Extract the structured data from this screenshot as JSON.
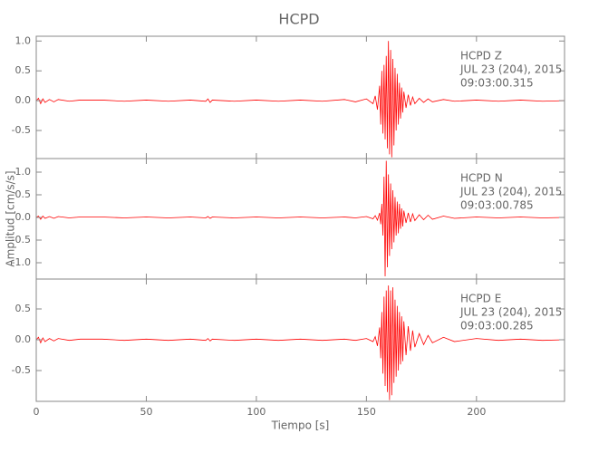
{
  "chart_data": [
    {
      "type": "line",
      "title": "HCPD",
      "annotations": [
        "HCPD   Z",
        "JUL 23 (204), 2015",
        "09:03:00.315"
      ],
      "x": [
        0,
        1,
        2,
        3,
        4,
        6,
        8,
        10,
        15,
        20,
        30,
        40,
        50,
        60,
        70,
        77,
        78,
        79,
        80,
        90,
        100,
        110,
        120,
        130,
        140,
        145,
        150,
        153,
        154,
        155,
        156,
        156.5,
        157,
        157.5,
        158,
        158.5,
        159,
        159.5,
        160,
        160.5,
        161,
        161.5,
        162,
        162.5,
        163,
        163.5,
        164,
        164.5,
        165,
        165.5,
        166,
        166.5,
        167,
        168,
        169,
        170,
        171,
        172,
        174,
        176,
        178,
        180,
        185,
        190,
        200,
        210,
        220,
        230,
        240
      ],
      "series": [
        {
          "color": "#ff0000",
          "values": [
            0,
            0.04,
            -0.05,
            0.03,
            -0.03,
            0.02,
            -0.02,
            0.02,
            -0.01,
            0.01,
            0.01,
            -0.01,
            0.01,
            -0.01,
            0.01,
            -0.01,
            0.03,
            -0.03,
            0.01,
            -0.01,
            0.01,
            -0.01,
            0.01,
            -0.01,
            0.02,
            -0.02,
            0.03,
            -0.05,
            0.08,
            -0.15,
            0.25,
            -0.4,
            0.5,
            -0.55,
            0.6,
            -0.65,
            0.75,
            -0.8,
            1.0,
            -0.9,
            0.85,
            -0.95,
            0.7,
            -0.75,
            0.55,
            -0.5,
            0.45,
            -0.4,
            0.3,
            -0.3,
            0.22,
            -0.2,
            0.15,
            -0.12,
            0.1,
            -0.08,
            0.06,
            -0.05,
            0.04,
            -0.03,
            0.03,
            -0.02,
            0.02,
            -0.01,
            0.01,
            -0.01,
            0.01,
            -0.01,
            0
          ]
        }
      ],
      "xlim": [
        0,
        240
      ],
      "xticks": [
        0,
        50,
        100,
        150,
        200
      ],
      "ylim": [
        -0.97,
        1.08
      ],
      "yticks": [
        -0.5,
        {
          "value": 0,
          "label": "0.0"
        },
        0.5,
        {
          "value": 1,
          "label": "1.0"
        }
      ]
    },
    {
      "type": "line",
      "y_label": "Amplitud [cm/s/s]",
      "annotations": [
        "HCPD   N",
        "JUL 23 (204), 2015",
        "09:03:00.785"
      ],
      "x": [
        0,
        1,
        2,
        3,
        4,
        6,
        8,
        10,
        15,
        20,
        30,
        40,
        50,
        60,
        70,
        77,
        78,
        79,
        80,
        90,
        100,
        110,
        120,
        130,
        140,
        145,
        150,
        153,
        154,
        155,
        156,
        156.5,
        157,
        157.5,
        158,
        158.5,
        159,
        159.5,
        160,
        160.5,
        161,
        161.5,
        162,
        162.5,
        163,
        163.5,
        164,
        164.5,
        165,
        165.5,
        166,
        166.5,
        167,
        168,
        169,
        170,
        171,
        172,
        174,
        176,
        178,
        180,
        185,
        190,
        200,
        210,
        220,
        230,
        240
      ],
      "series": [
        {
          "color": "#ff0000",
          "values": [
            0,
            0.03,
            -0.04,
            0.03,
            -0.02,
            0.02,
            -0.02,
            0.02,
            -0.01,
            0.01,
            0.01,
            -0.01,
            0.01,
            -0.01,
            0.01,
            -0.01,
            0.02,
            -0.02,
            0.01,
            -0.01,
            0.01,
            -0.01,
            0.01,
            -0.01,
            0.01,
            -0.01,
            0.02,
            -0.03,
            0.04,
            -0.06,
            0.1,
            -0.15,
            0.3,
            -0.4,
            0.9,
            -1.3,
            1.25,
            -1.1,
            0.95,
            -0.85,
            0.75,
            -0.7,
            0.6,
            -0.55,
            0.45,
            -0.4,
            0.35,
            -0.35,
            0.3,
            -0.25,
            0.2,
            -0.2,
            0.15,
            -0.12,
            0.1,
            -0.1,
            0.08,
            -0.07,
            0.06,
            -0.05,
            0.05,
            -0.04,
            0.03,
            -0.02,
            0.01,
            -0.01,
            0.01,
            -0.01,
            0
          ]
        }
      ],
      "xlim": [
        0,
        240
      ],
      "xticks": [
        0,
        50,
        100,
        150,
        200
      ],
      "ylim": [
        -1.36,
        1.3
      ],
      "yticks": [
        {
          "value": -1,
          "label": "-1.0"
        },
        -0.5,
        {
          "value": 0,
          "label": "0.0"
        },
        0.5,
        {
          "value": 1,
          "label": "1.0"
        }
      ]
    },
    {
      "type": "line",
      "x_label": "Tiempo [s]",
      "annotations": [
        "HCPD   E",
        "JUL 23 (204), 2015",
        "09:03:00.285"
      ],
      "x": [
        0,
        1,
        2,
        3,
        4,
        6,
        8,
        10,
        15,
        20,
        30,
        40,
        50,
        60,
        70,
        77,
        78,
        79,
        80,
        90,
        100,
        110,
        120,
        130,
        140,
        145,
        150,
        153,
        154,
        155,
        156,
        156.5,
        157,
        157.5,
        158,
        158.5,
        159,
        159.5,
        160,
        160.5,
        161,
        161.5,
        162,
        162.5,
        163,
        163.5,
        164,
        164.5,
        165,
        165.5,
        166,
        166.5,
        167,
        168,
        169,
        170,
        171,
        172,
        174,
        176,
        178,
        180,
        185,
        190,
        200,
        210,
        220,
        230,
        240
      ],
      "series": [
        {
          "color": "#ff0000",
          "values": [
            0,
            0.04,
            -0.05,
            0.03,
            -0.03,
            0.02,
            -0.02,
            0.02,
            -0.01,
            0.01,
            0.01,
            -0.01,
            0.01,
            -0.01,
            0.01,
            -0.01,
            0.02,
            -0.02,
            0.01,
            -0.01,
            0.01,
            -0.01,
            0.01,
            -0.01,
            0.01,
            -0.01,
            0.02,
            -0.03,
            0.05,
            -0.1,
            0.2,
            -0.3,
            0.45,
            -0.55,
            0.7,
            -0.75,
            0.8,
            -0.85,
            0.88,
            -0.98,
            0.8,
            -0.9,
            0.85,
            -0.7,
            0.65,
            -0.6,
            0.55,
            -0.5,
            0.45,
            -0.4,
            0.38,
            -0.35,
            0.3,
            -0.25,
            0.22,
            -0.18,
            0.15,
            -0.12,
            0.1,
            -0.08,
            0.07,
            -0.05,
            0.04,
            -0.03,
            0.02,
            -0.01,
            0.01,
            -0.01,
            0
          ]
        }
      ],
      "xlim": [
        0,
        240
      ],
      "xticks": [
        0,
        50,
        100,
        150,
        200
      ],
      "ylim": [
        -1.0,
        0.985
      ],
      "yticks": [
        -0.5,
        {
          "value": 0,
          "label": "0.0"
        },
        0.5
      ]
    }
  ]
}
